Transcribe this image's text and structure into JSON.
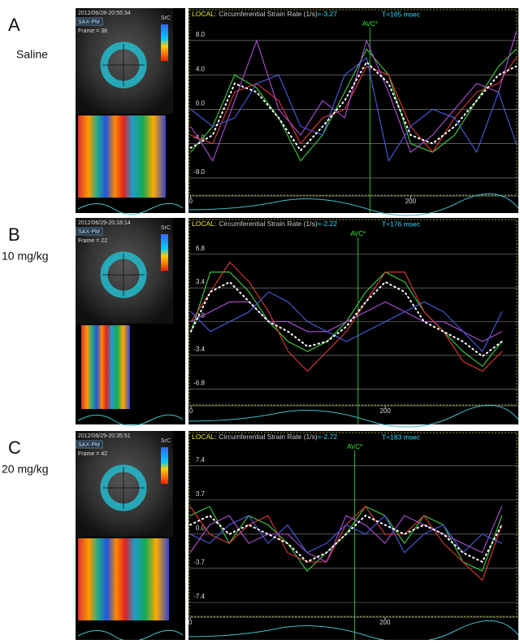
{
  "panels": [
    {
      "letter": "A",
      "condition": "Saline",
      "timestamp": "2012/06/28-20:55:34",
      "view": "SAX-PM",
      "frame": "Frame = 38",
      "src_label": "SrC",
      "header": {
        "local": "LOCAL:",
        "measure": "Circumferential Strain Rate (1/s)",
        "value": "=-3.27",
        "time": "T=165 msec"
      }
    },
    {
      "letter": "B",
      "condition": "10 mg/kg",
      "timestamp": "2012/06/29-20:18:14",
      "view": "SAX-PM",
      "frame": "Frame = 22",
      "src_label": "SrC",
      "header": {
        "local": "LOCAL:",
        "measure": "Circumferential Strain Rate (1/s)",
        "value": "=-2.22",
        "time": "T=176 msec"
      }
    },
    {
      "letter": "C",
      "condition": "20 mg/kg",
      "timestamp": "2012/06/29-20:35:51",
      "view": "SAX-PM",
      "frame": "Frame = 42",
      "src_label": "SrC",
      "header": {
        "local": "LOCAL:",
        "measure": "Circumferential Strain Rate (1/s)",
        "value": "=-2.72",
        "time": "T=183 msec"
      }
    }
  ],
  "chart_data": [
    {
      "type": "line",
      "xlim": [
        -2,
        298
      ],
      "ylim": [
        -10,
        11.4
      ],
      "xticks": [
        0,
        200
      ],
      "yticks": [
        {
          "value": 8,
          "label": "8.0"
        },
        {
          "value": 4,
          "label": "4.0"
        },
        {
          "value": 0,
          "label": "0.0"
        },
        {
          "value": -4,
          "label": "-4.0"
        },
        {
          "value": -8,
          "label": "-8.0"
        }
      ],
      "grid": true,
      "annotations": [
        {
          "text": "AVC*",
          "x": 163
        }
      ],
      "x": [
        0,
        20,
        40,
        60,
        80,
        100,
        120,
        140,
        160,
        180,
        200,
        220,
        240,
        260,
        280,
        296
      ],
      "series": [
        {
          "color": "#3fcf3f",
          "values": [
            -5,
            -2,
            4,
            2.5,
            -1,
            -6,
            -3,
            2,
            7,
            4,
            -4,
            -5,
            -3,
            1,
            5,
            7
          ]
        },
        {
          "color": "#e03a3a",
          "values": [
            -3,
            -4,
            2,
            3,
            1,
            -4,
            -1,
            0,
            5,
            4,
            -2,
            -5,
            -1,
            2,
            3,
            6
          ]
        },
        {
          "color": "#b050d8",
          "values": [
            -2,
            -6,
            1,
            8,
            0,
            -3,
            1,
            -1,
            8,
            2,
            -5,
            -3,
            0,
            3,
            2,
            9
          ]
        },
        {
          "color": "#4a5ee0",
          "values": [
            0,
            -2,
            -1,
            3,
            4,
            -2,
            -3,
            4,
            6,
            -6,
            -2,
            0,
            -1,
            -5,
            2,
            -4
          ]
        },
        {
          "color": "#ffffff",
          "values": [
            -4.5,
            -3,
            3,
            2,
            -1,
            -4.8,
            -2,
            1,
            5.5,
            3,
            -3,
            -4,
            -2,
            1,
            4,
            5
          ]
        }
      ]
    },
    {
      "type": "line",
      "xlim": [
        -2.5,
        337
      ],
      "ylim": [
        -8.4,
        10.3
      ],
      "xticks": [
        0,
        200
      ],
      "yticks": [
        {
          "value": 6.8,
          "label": "6.8"
        },
        {
          "value": 3.4,
          "label": "3.4"
        },
        {
          "value": 0,
          "label": "0.0"
        },
        {
          "value": -3.4,
          "label": "-3.4"
        },
        {
          "value": -6.8,
          "label": "-6.8"
        }
      ],
      "grid": true,
      "annotations": [
        {
          "text": "AVC*",
          "x": 172
        }
      ],
      "x": [
        0,
        20,
        40,
        60,
        80,
        100,
        120,
        140,
        160,
        180,
        200,
        220,
        240,
        260,
        280,
        300,
        320
      ],
      "series": [
        {
          "color": "#3fcf3f",
          "values": [
            -1,
            5,
            5,
            3,
            0,
            -2,
            -3,
            -2,
            0,
            3,
            5,
            4,
            1,
            -1,
            -3,
            -4.5,
            -2
          ]
        },
        {
          "color": "#e03a3a",
          "values": [
            0,
            3,
            6,
            4,
            1,
            -3,
            -5,
            -3,
            -1,
            2,
            5,
            5,
            1,
            -1,
            -4,
            -5,
            -3
          ]
        },
        {
          "color": "#b050d8",
          "values": [
            0,
            1,
            2,
            2,
            0,
            0,
            -1,
            -1,
            0,
            1,
            2,
            1,
            0,
            0,
            -1,
            -2,
            -1
          ]
        },
        {
          "color": "#4a5ee0",
          "values": [
            1,
            -1,
            0,
            1,
            3,
            2,
            0,
            -1,
            -2,
            -1,
            0,
            1,
            2,
            1,
            -1,
            -3,
            1
          ]
        },
        {
          "color": "#ffffff",
          "values": [
            -1,
            3,
            4,
            2,
            0,
            -1,
            -2.5,
            -2,
            -0.5,
            2,
            4,
            3,
            0,
            -1,
            -2,
            -3.5,
            -2
          ]
        }
      ]
    },
    {
      "type": "line",
      "xlim": [
        -1.7,
        337
      ],
      "ylim": [
        -8.9,
        10.9
      ],
      "xticks": [
        0,
        200
      ],
      "yticks": [
        {
          "value": 7.4,
          "label": "7.4"
        },
        {
          "value": 3.7,
          "label": "3.7"
        },
        {
          "value": 0,
          "label": "0.0"
        },
        {
          "value": -3.7,
          "label": "-3.7"
        },
        {
          "value": -7.4,
          "label": "-7.4"
        }
      ],
      "grid": true,
      "annotations": [
        {
          "text": "AVC*",
          "x": 169
        }
      ],
      "x": [
        0,
        20,
        40,
        60,
        80,
        100,
        120,
        140,
        160,
        180,
        200,
        220,
        240,
        260,
        280,
        300,
        320
      ],
      "series": [
        {
          "color": "#3fcf3f",
          "values": [
            2,
            3,
            -1,
            2,
            1,
            -1,
            -4,
            -2,
            0,
            3,
            2,
            -1,
            2,
            1,
            -3,
            -4,
            2
          ]
        },
        {
          "color": "#e03a3a",
          "values": [
            3,
            0,
            -1,
            1,
            2,
            -2,
            -3,
            -3,
            1,
            3,
            0,
            0,
            2,
            -1,
            -3,
            -5,
            1
          ]
        },
        {
          "color": "#b050d8",
          "values": [
            -2,
            1,
            2,
            -1,
            0,
            0,
            -2,
            -3,
            2,
            1,
            -1,
            2,
            1,
            0,
            -1,
            -2,
            3
          ]
        },
        {
          "color": "#4a5ee0",
          "values": [
            0,
            -1,
            1,
            2,
            -1,
            1,
            -2,
            -1,
            1,
            0,
            2,
            -2,
            0,
            1,
            -2,
            0,
            -1
          ]
        },
        {
          "color": "#ffffff",
          "values": [
            1,
            2,
            0,
            1,
            0,
            -1,
            -3,
            -2,
            0,
            2,
            1,
            0,
            1,
            0,
            -2,
            -3,
            1
          ]
        }
      ]
    }
  ]
}
